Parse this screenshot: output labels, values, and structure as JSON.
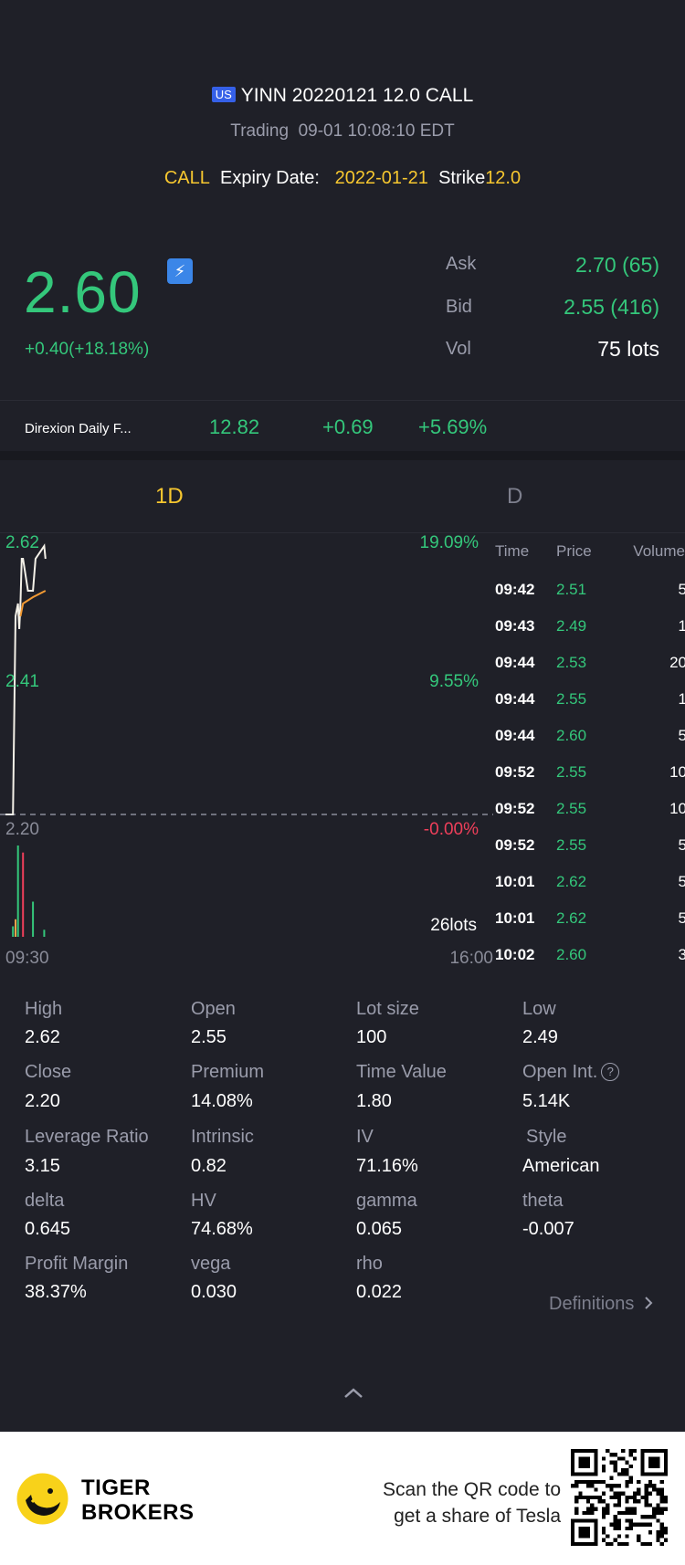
{
  "header": {
    "market_badge": "US",
    "contract_title": "YINN 20220121 12.0 CALL",
    "status": "Trading",
    "timestamp": "09-01 10:08:10 EDT",
    "option_type": "CALL",
    "expiry_label": "Expiry Date:",
    "expiry_value": "2022-01-21",
    "strike_label": "Strike",
    "strike_value": "12.0"
  },
  "quote": {
    "last_price": "2.60",
    "change": "+0.40(+18.18%)",
    "ask_label": "Ask",
    "ask_value": "2.70 (65)",
    "bid_label": "Bid",
    "bid_value": "2.55 (416)",
    "vol_label": "Vol",
    "vol_value": "75 lots"
  },
  "underlying": {
    "name": "Direxion Daily F...",
    "price": "12.82",
    "change": "+0.69",
    "change_pct": "+5.69%"
  },
  "chart_tabs": [
    {
      "label": "1D",
      "active": true
    },
    {
      "label": "D",
      "active": false
    }
  ],
  "chart": {
    "y_max_label": "2.62",
    "y_mid_label": "2.41",
    "y_min_label": "2.20",
    "pct_max_label": "19.09%",
    "pct_mid_label": "9.55%",
    "pct_min_label": "-0.00%",
    "volume_label": "26lots",
    "x_start": "09:30",
    "x_end": "16:00"
  },
  "chart_data": {
    "type": "line",
    "series": [
      {
        "x": [
          "09:30",
          "09:36",
          "09:38",
          "09:40",
          "09:41",
          "09:42",
          "09:43",
          "09:44",
          "09:48",
          "09:52",
          "09:54",
          "10:01",
          "10:02"
        ],
        "values": [
          2.2,
          2.2,
          2.51,
          2.53,
          2.49,
          2.53,
          2.6,
          2.6,
          2.55,
          2.55,
          2.6,
          2.62,
          2.6
        ]
      },
      {
        "x": [
          "09:42",
          "09:44",
          "09:52",
          "10:02"
        ],
        "values": [
          2.51,
          2.53,
          2.54,
          2.55
        ]
      }
    ],
    "volume_bars": [
      {
        "x": "09:36",
        "value": 3,
        "color": "#34c77b"
      },
      {
        "x": "09:38",
        "value": 5,
        "color": "#e8a14b"
      },
      {
        "x": "09:40",
        "value": 26,
        "color": "#34c77b"
      },
      {
        "x": "09:44",
        "value": 24,
        "color": "#ef3f5a"
      },
      {
        "x": "09:52",
        "value": 10,
        "color": "#34c77b"
      },
      {
        "x": "10:01",
        "value": 2,
        "color": "#34c77b"
      }
    ],
    "ylim": [
      2.2,
      2.62
    ],
    "y_pct_range": [
      "-0.00%",
      "19.09%"
    ],
    "xlim": [
      "09:30",
      "16:00"
    ]
  },
  "trades": {
    "headers": [
      "Time",
      "Price",
      "Volume"
    ],
    "rows": [
      {
        "time": "09:42",
        "price": "2.51",
        "volume": "5"
      },
      {
        "time": "09:43",
        "price": "2.49",
        "volume": "1"
      },
      {
        "time": "09:44",
        "price": "2.53",
        "volume": "20"
      },
      {
        "time": "09:44",
        "price": "2.55",
        "volume": "1"
      },
      {
        "time": "09:44",
        "price": "2.60",
        "volume": "5"
      },
      {
        "time": "09:52",
        "price": "2.55",
        "volume": "10"
      },
      {
        "time": "09:52",
        "price": "2.55",
        "volume": "10"
      },
      {
        "time": "09:52",
        "price": "2.55",
        "volume": "5"
      },
      {
        "time": "10:01",
        "price": "2.62",
        "volume": "5"
      },
      {
        "time": "10:01",
        "price": "2.62",
        "volume": "5"
      },
      {
        "time": "10:02",
        "price": "2.60",
        "volume": "3"
      }
    ]
  },
  "stats": [
    {
      "label": "High",
      "value": "2.62"
    },
    {
      "label": "Open",
      "value": "2.55"
    },
    {
      "label": "Lot size",
      "value": "100"
    },
    {
      "label": "Low",
      "value": "2.49"
    },
    {
      "label": "Close",
      "value": "2.20"
    },
    {
      "label": "Premium",
      "value": "14.08%"
    },
    {
      "label": "Time Value",
      "value": "1.80"
    },
    {
      "label": "Open Int.",
      "value": "5.14K"
    },
    {
      "label": "Leverage Ratio",
      "value": "3.15"
    },
    {
      "label": "Intrinsic",
      "value": "0.82"
    },
    {
      "label": "IV",
      "value": "71.16%"
    },
    {
      "label": "Style",
      "value": "American"
    },
    {
      "label": "delta",
      "value": "0.645"
    },
    {
      "label": "HV",
      "value": "74.68%"
    },
    {
      "label": "gamma",
      "value": "0.065"
    },
    {
      "label": "theta",
      "value": "-0.007"
    },
    {
      "label": "Profit Margin",
      "value": "38.37%"
    },
    {
      "label": "vega",
      "value": "0.030"
    },
    {
      "label": "rho",
      "value": "0.022"
    }
  ],
  "definitions_link": "Definitions",
  "footer": {
    "brand_line1": "TIGER",
    "brand_line2": "BROKERS",
    "promo_line1": "Scan the QR code to",
    "promo_line2": "get a share of Tesla"
  },
  "colors": {
    "background": "#1f2028",
    "up_green": "#34c77b",
    "highlight_yellow": "#f7c72f",
    "down_red": "#ef3f5a",
    "muted": "#9a9cab"
  }
}
